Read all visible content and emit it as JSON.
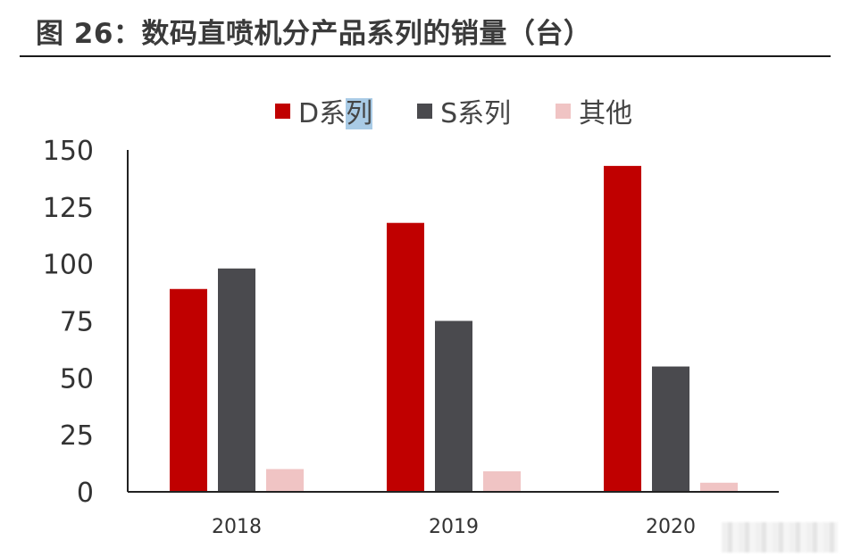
{
  "figure": {
    "title": "图 26：数码直喷机分产品系列的销量（台）"
  },
  "legend": {
    "items": [
      {
        "label_main": "D系",
        "label_highlight": "列",
        "color": "#c00000"
      },
      {
        "label_main": "S系列",
        "color": "#4a4a4e"
      },
      {
        "label_main": "其他",
        "color": "#f0c4c4"
      }
    ]
  },
  "chart_data": {
    "type": "bar",
    "title": "数码直喷机分产品系列的销量（台）",
    "xlabel": "",
    "ylabel": "",
    "categories": [
      "2018",
      "2019",
      "2020"
    ],
    "series": [
      {
        "name": "D系列",
        "values": [
          89,
          118,
          143
        ],
        "color": "#c00000"
      },
      {
        "name": "S系列",
        "values": [
          98,
          75,
          55
        ],
        "color": "#4a4a4e"
      },
      {
        "name": "其他",
        "values": [
          10,
          9,
          4
        ],
        "color": "#f0c4c4"
      }
    ],
    "ylim": [
      0,
      150
    ],
    "yticks": [
      0,
      25,
      50,
      75,
      100,
      125,
      150
    ],
    "grid": false,
    "legend_position": "top"
  }
}
